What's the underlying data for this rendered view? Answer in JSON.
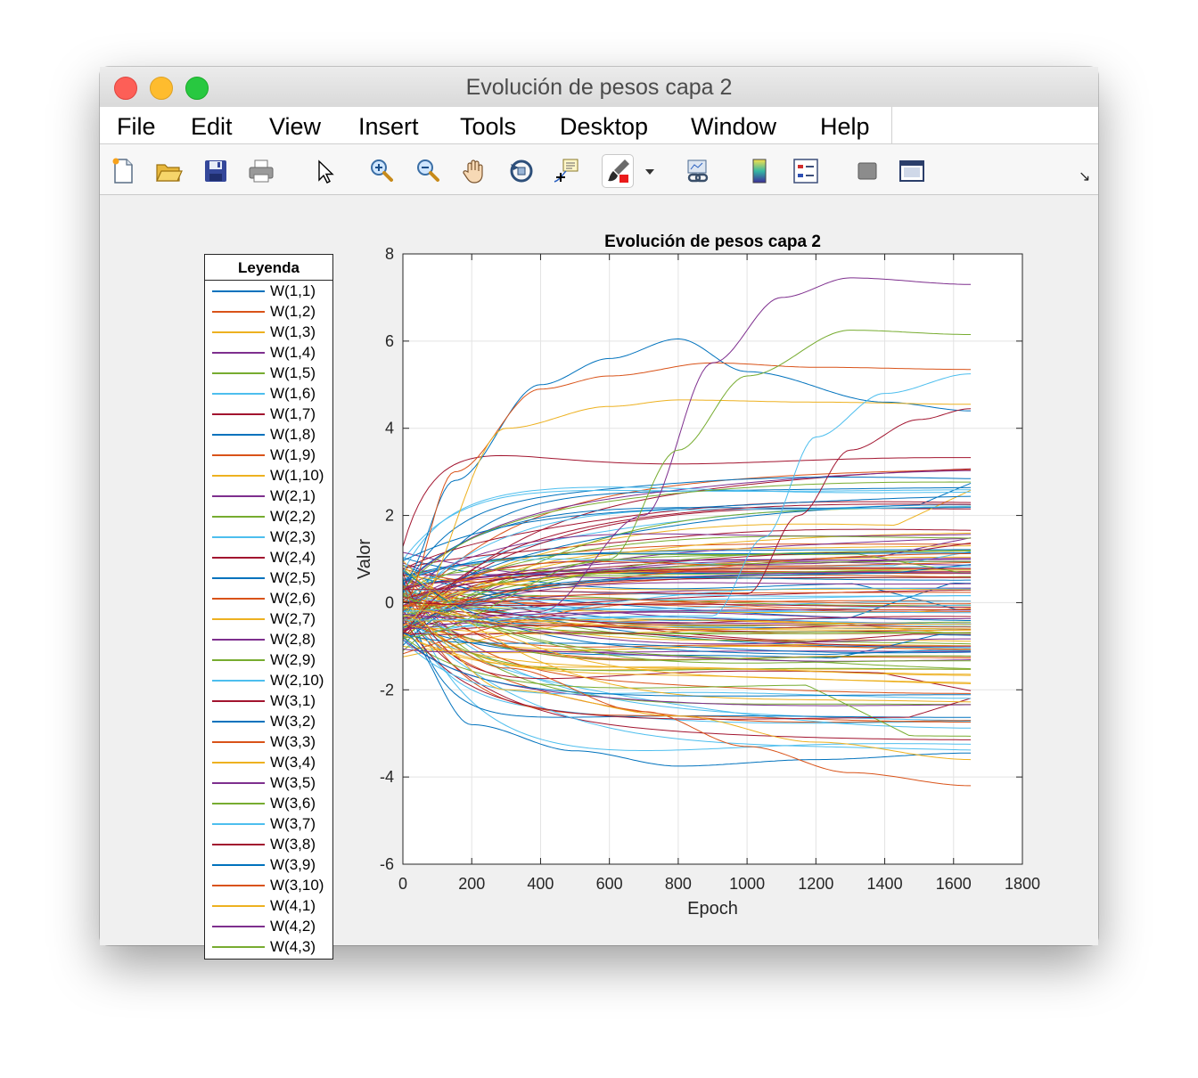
{
  "window": {
    "title": "Evolución de pesos capa 2"
  },
  "menu": [
    "File",
    "Edit",
    "View",
    "Insert",
    "Tools",
    "Desktop",
    "Window",
    "Help"
  ],
  "toolbar": [
    {
      "name": "new-figure-icon"
    },
    {
      "name": "open-file-icon"
    },
    {
      "name": "save-icon"
    },
    {
      "name": "print-icon"
    },
    {
      "name": "edit-plot-pointer-icon"
    },
    {
      "name": "zoom-in-icon"
    },
    {
      "name": "zoom-out-icon"
    },
    {
      "name": "pan-hand-icon"
    },
    {
      "name": "rotate-3d-icon"
    },
    {
      "name": "data-cursor-icon"
    },
    {
      "name": "brush-icon"
    },
    {
      "name": "link-plot-icon"
    },
    {
      "name": "insert-colorbar-icon"
    },
    {
      "name": "insert-legend-icon"
    },
    {
      "name": "hide-plot-tools-icon"
    },
    {
      "name": "show-plot-tools-icon"
    }
  ],
  "legend": {
    "title": "Leyenda",
    "entries": [
      "W(1,1)",
      "W(1,2)",
      "W(1,3)",
      "W(1,4)",
      "W(1,5)",
      "W(1,6)",
      "W(1,7)",
      "W(1,8)",
      "W(1,9)",
      "W(1,10)",
      "W(2,1)",
      "W(2,2)",
      "W(2,3)",
      "W(2,4)",
      "W(2,5)",
      "W(2,6)",
      "W(2,7)",
      "W(2,8)",
      "W(2,9)",
      "W(2,10)",
      "W(3,1)",
      "W(3,2)",
      "W(3,3)",
      "W(3,4)",
      "W(3,5)",
      "W(3,6)",
      "W(3,7)",
      "W(3,8)",
      "W(3,9)",
      "W(3,10)",
      "W(4,1)",
      "W(4,2)",
      "W(4,3)"
    ]
  },
  "colors": {
    "series_order": [
      "#0072BD",
      "#D95319",
      "#EDB120",
      "#7E2F8E",
      "#77AC30",
      "#4DBEEE",
      "#A2142F"
    ]
  },
  "chart_data": {
    "type": "line",
    "title": "Evolución de pesos capa 2",
    "xlabel": "Epoch",
    "ylabel": "Valor",
    "xlim": [
      0,
      1800
    ],
    "ylim": [
      -6,
      8
    ],
    "xticks": [
      "0",
      "200",
      "400",
      "600",
      "800",
      "1000",
      "1200",
      "1400",
      "1600",
      "1800"
    ],
    "yticks": [
      "-6",
      "-4",
      "-2",
      "0",
      "2",
      "4",
      "6",
      "8"
    ],
    "grid": true,
    "x_end": 1650,
    "highlighted_series": [
      {
        "points": [
          [
            0,
            0.5
          ],
          [
            150,
            2.8
          ],
          [
            400,
            5.0
          ],
          [
            600,
            5.6
          ],
          [
            800,
            6.05
          ],
          [
            1000,
            5.3
          ],
          [
            1400,
            4.6
          ],
          [
            1650,
            4.4
          ]
        ]
      },
      {
        "points": [
          [
            0,
            0
          ],
          [
            150,
            3.0
          ],
          [
            400,
            4.9
          ],
          [
            600,
            5.2
          ],
          [
            900,
            5.5
          ],
          [
            1200,
            5.4
          ],
          [
            1650,
            5.35
          ]
        ]
      },
      {
        "points": [
          [
            0,
            -0.5
          ],
          [
            300,
            4.0
          ],
          [
            600,
            4.5
          ],
          [
            800,
            4.65
          ],
          [
            1200,
            4.6
          ],
          [
            1650,
            4.55
          ]
        ]
      },
      {
        "points": [
          [
            0,
            -0.6
          ],
          [
            400,
            -0.2
          ],
          [
            700,
            2.0
          ],
          [
            900,
            5.5
          ],
          [
            1100,
            7.0
          ],
          [
            1300,
            7.45
          ],
          [
            1650,
            7.3
          ]
        ]
      },
      {
        "points": [
          [
            0,
            -0.8
          ],
          [
            600,
            1.0
          ],
          [
            800,
            3.5
          ],
          [
            1000,
            5.2
          ],
          [
            1300,
            6.25
          ],
          [
            1650,
            6.15
          ]
        ]
      },
      {
        "points": [
          [
            0,
            -0.4
          ],
          [
            900,
            -0.3
          ],
          [
            1050,
            1.5
          ],
          [
            1200,
            3.8
          ],
          [
            1400,
            4.8
          ],
          [
            1650,
            5.25
          ]
        ]
      },
      {
        "points": [
          [
            0,
            0.3
          ],
          [
            1000,
            0.2
          ],
          [
            1150,
            2.0
          ],
          [
            1300,
            3.5
          ],
          [
            1500,
            4.2
          ],
          [
            1650,
            4.45
          ]
        ]
      },
      {
        "points": [
          [
            0,
            -0.7
          ],
          [
            200,
            -2.8
          ],
          [
            500,
            -3.4
          ],
          [
            800,
            -3.75
          ],
          [
            1200,
            -3.6
          ],
          [
            1650,
            -3.45
          ]
        ]
      },
      {
        "points": [
          [
            0,
            -0.5
          ],
          [
            300,
            -1.5
          ],
          [
            700,
            -2.5
          ],
          [
            1000,
            -3.3
          ],
          [
            1300,
            -3.9
          ],
          [
            1650,
            -4.2
          ]
        ]
      },
      {
        "points": [
          [
            0,
            -0.3
          ],
          [
            300,
            -2.0
          ],
          [
            800,
            -2.6
          ],
          [
            1200,
            -3.2
          ],
          [
            1650,
            -3.6
          ]
        ]
      }
    ]
  }
}
